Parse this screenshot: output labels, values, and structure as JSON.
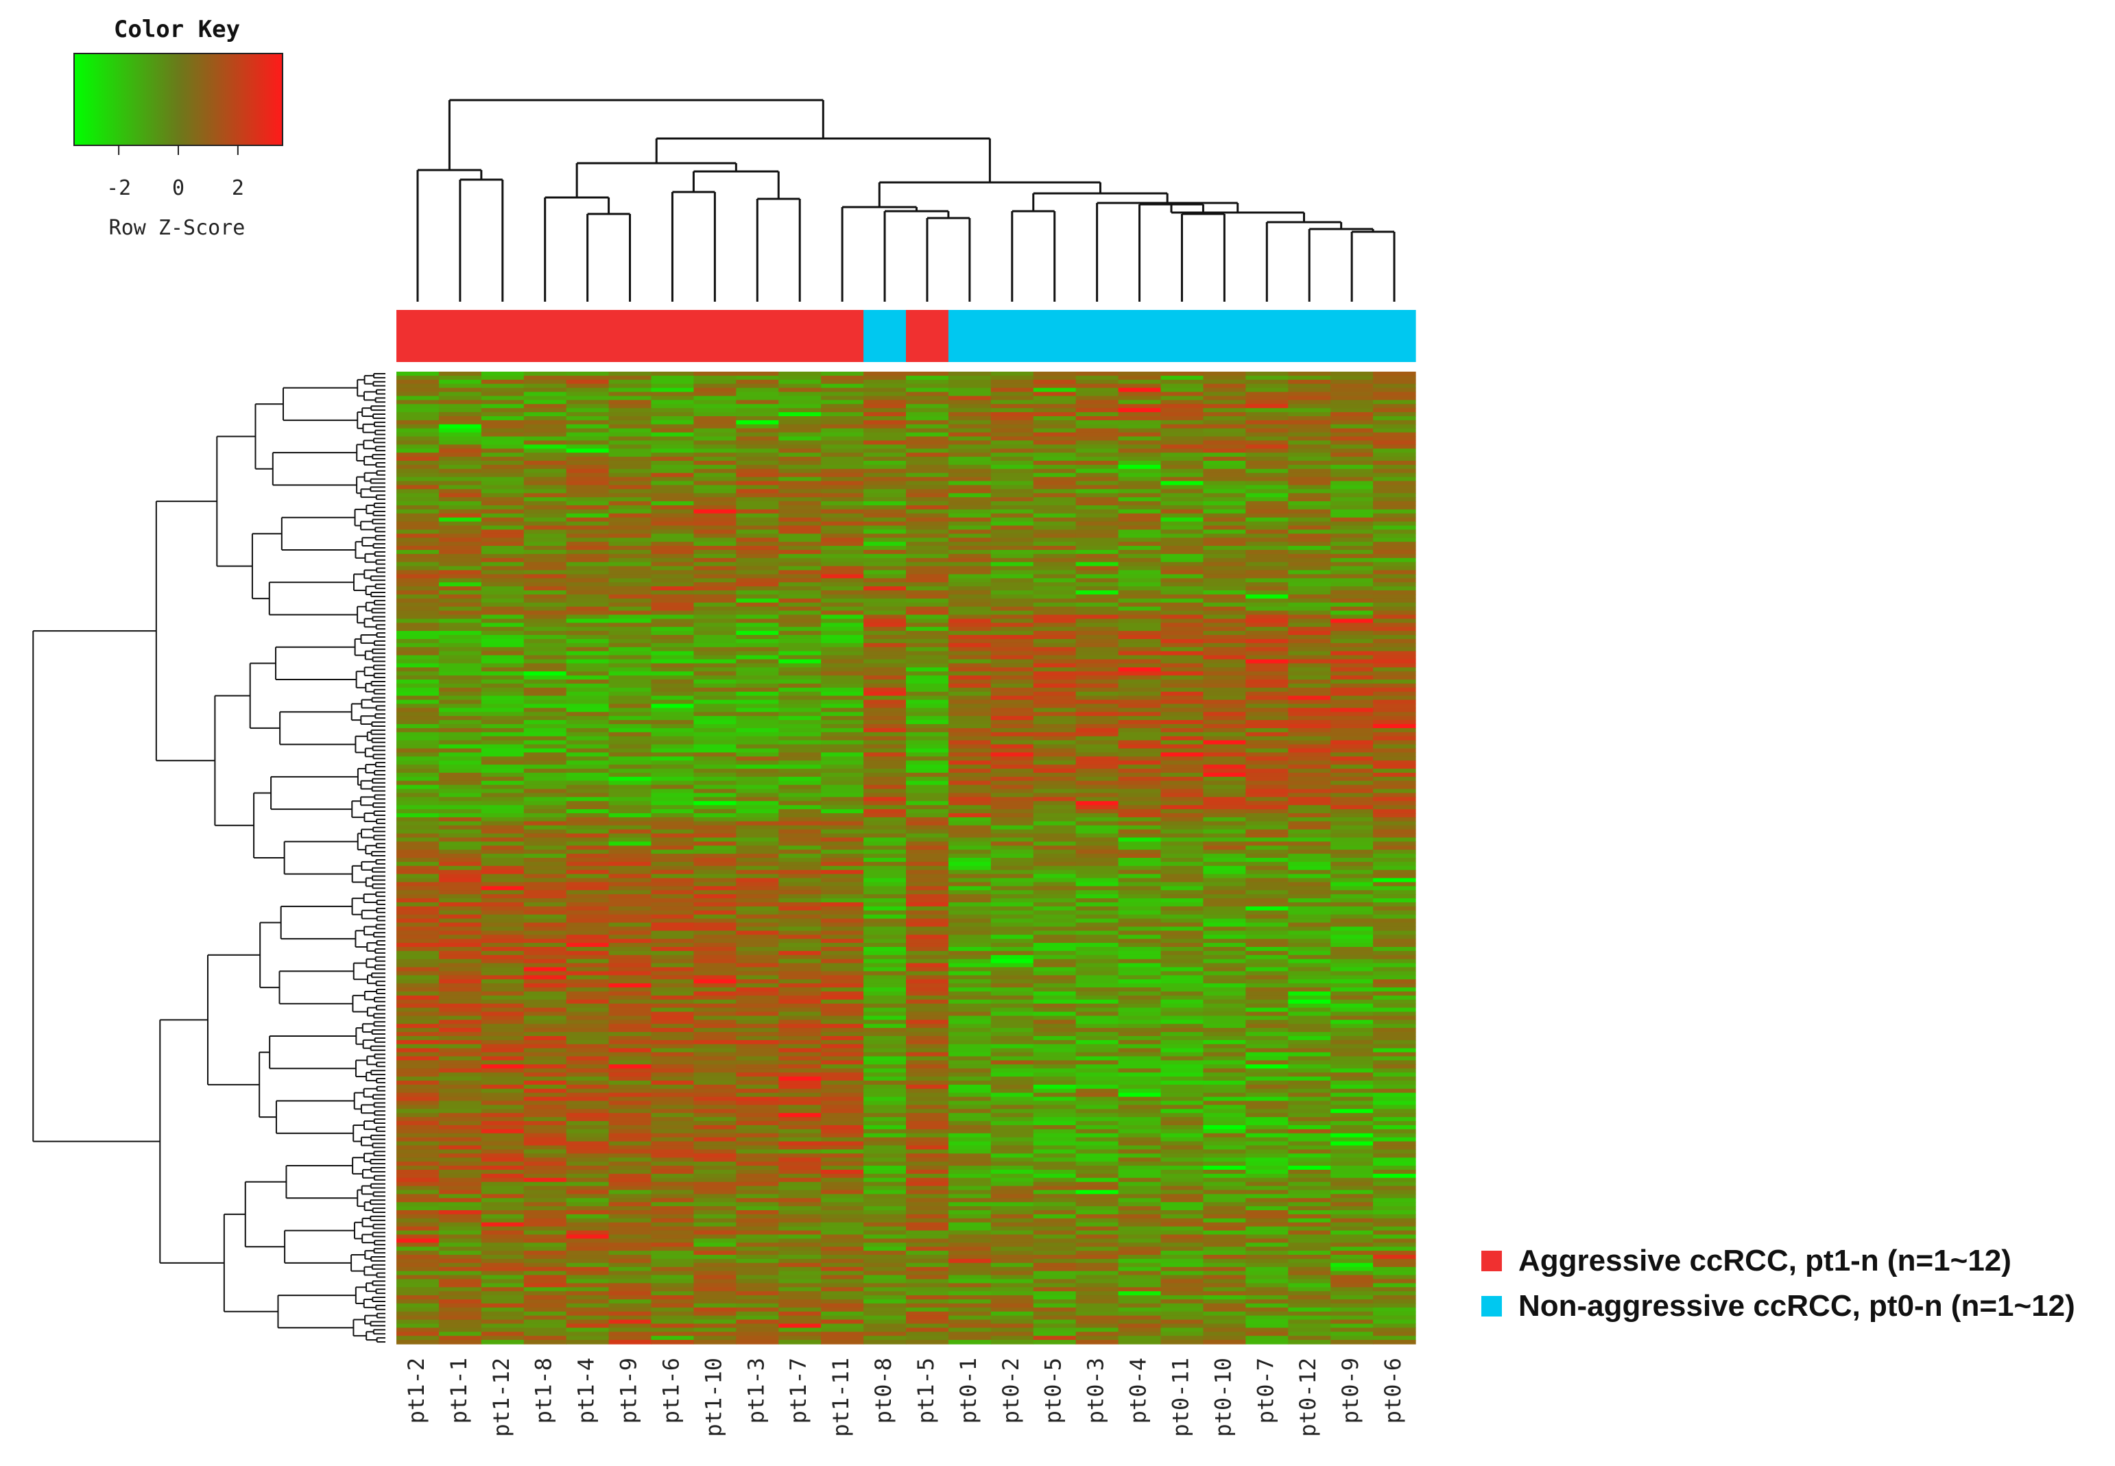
{
  "chart_data": {
    "type": "heatmap",
    "title": "",
    "color_key": {
      "title": "Color Key",
      "xlabel": "Row Z-Score",
      "ticks": [
        "-2",
        "0",
        "2"
      ],
      "range": [
        -3.5,
        3.5
      ],
      "low_color": "#00ff00",
      "mid_color": "#6b7a1a",
      "high_color": "#ff1a1a"
    },
    "columns": [
      "pt1-2",
      "pt1-1",
      "pt1-12",
      "pt1-8",
      "pt1-4",
      "pt1-9",
      "pt1-6",
      "pt1-10",
      "pt1-3",
      "pt1-7",
      "pt1-11",
      "pt0-8",
      "pt1-5",
      "pt0-1",
      "pt0-2",
      "pt0-5",
      "pt0-3",
      "pt0-4",
      "pt0-11",
      "pt0-10",
      "pt0-7",
      "pt0-12",
      "pt0-9",
      "pt0-6"
    ],
    "column_groups": [
      "aggressive",
      "aggressive",
      "aggressive",
      "aggressive",
      "aggressive",
      "aggressive",
      "aggressive",
      "aggressive",
      "aggressive",
      "aggressive",
      "aggressive",
      "non_aggressive",
      "aggressive",
      "non_aggressive",
      "non_aggressive",
      "non_aggressive",
      "non_aggressive",
      "non_aggressive",
      "non_aggressive",
      "non_aggressive",
      "non_aggressive",
      "non_aggressive",
      "non_aggressive",
      "non_aggressive"
    ],
    "row_count": 240,
    "row_dendrogram": true,
    "column_dendrogram": true,
    "legend": [
      {
        "key": "aggressive",
        "label": "Aggressive ccRCC, pt1-n (n=1~12)",
        "color": "#f03030"
      },
      {
        "key": "non_aggressive",
        "label": "Non-aggressive ccRCC, pt0-n (n=1~12)",
        "color": "#00c8f0"
      }
    ],
    "legend_placement": "bottom-right"
  }
}
